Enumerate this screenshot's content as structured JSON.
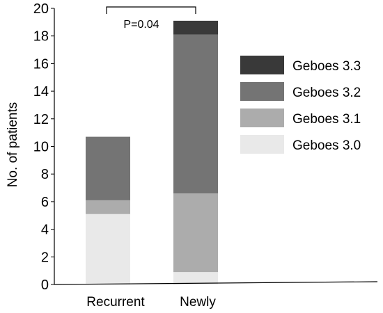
{
  "chart_data": {
    "type": "bar",
    "stacked": true,
    "categories": [
      "Recurrent",
      "Newly"
    ],
    "series": [
      {
        "name": "Geboes 3.0",
        "color": "#e9e9e9",
        "values": [
          5.1,
          0.9
        ]
      },
      {
        "name": "Geboes 3.1",
        "color": "#acacac",
        "values": [
          1.0,
          5.7
        ]
      },
      {
        "name": "Geboes 3.2",
        "color": "#747474",
        "values": [
          4.6,
          11.5
        ]
      },
      {
        "name": "Geboes 3.3",
        "color": "#393939",
        "values": [
          0,
          1.0
        ]
      }
    ],
    "legend_order": [
      "Geboes 3.3",
      "Geboes 3.2",
      "Geboes 3.1",
      "Geboes 3.0"
    ],
    "legend_position": "right",
    "ylabel": "No. of patients",
    "xlabel": "",
    "ylim": [
      0,
      20
    ],
    "yticks": [
      0,
      2,
      4,
      6,
      8,
      10,
      12,
      14,
      16,
      18,
      20
    ],
    "grid": false,
    "annotations": [
      {
        "text": "P=0.04",
        "type": "significance-bracket",
        "between": [
          "Recurrent",
          "Newly"
        ]
      }
    ]
  }
}
